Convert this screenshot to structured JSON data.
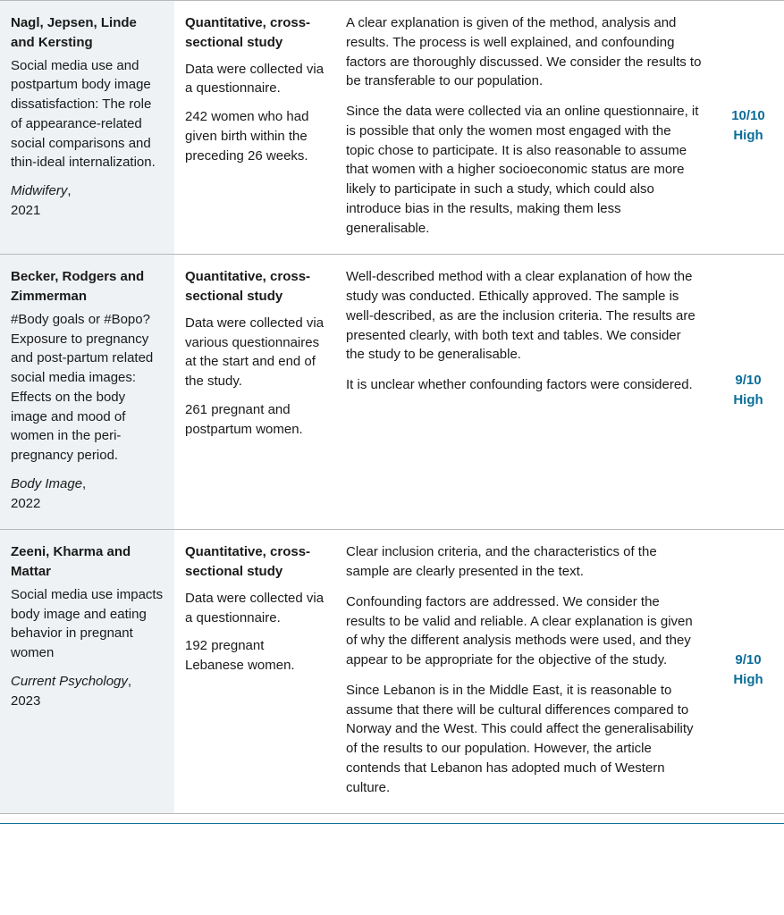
{
  "colors": {
    "score": "#0b6e99",
    "cell_bg": "#eef2f5",
    "border": "#b8b8b8",
    "rule": "#0b6e99"
  },
  "rows": [
    {
      "authors": "Nagl, Jepsen, Linde and Kersting",
      "title": "Social media use and postpartum body image dissatisfaction: The role of appearance-related social comparisons and thin-ideal internalization.",
      "journal": "Midwifery",
      "year": "2021",
      "method_type": "Quantitative, cross-sectional study",
      "method_p1": "Data were collected via a questionnaire.",
      "method_p2": "242 women who had given birth within the preceding 26 weeks.",
      "summary_p1": "A clear explanation is given of the method, analysis and results. The process is well explained, and confounding factors are thoroughly discussed. We consider the results to be transferable to our population.",
      "summary_p2": "Since the data were collected via an online questionnaire, it is possible that only the women most engaged with the topic chose to participate. It is also reasonable to assume that women with a higher socioeconomic status are more likely to participate in such a study, which could also introduce bias in the results, making them less generalisable.",
      "score": "10/10",
      "score_label": "High"
    },
    {
      "authors": "Becker, Rodgers and Zimmerman",
      "title": "#Body goals or #Bopo? Exposure to pregnancy and post-partum related social media images: Effects on the body image and mood of women in the peri-pregnancy period.",
      "journal": "Body Image",
      "year": "2022",
      "method_type": "Quantitative, cross-sectional study",
      "method_p1": "Data were collected via various questionnaires at the start and end of the study.",
      "method_p2": "261 pregnant and postpartum women.",
      "summary_p1": "Well-described method with a clear explanation of how the study was conducted. Ethically approved. The sample is well-described, as are the inclusion criteria. The results are presented clearly, with both text and tables. We consider the study to be generalisable.",
      "summary_p2": "It is unclear whether confounding factors were considered.",
      "score": "9/10",
      "score_label": "High"
    },
    {
      "authors": "Zeeni, Kharma and Mattar",
      "title": "Social media use impacts body image and eating behavior in pregnant women",
      "journal": "Current Psychology",
      "year": "2023",
      "method_type": "Quantitative, cross-sectional study",
      "method_p1": "Data were collected via a questionnaire.",
      "method_p2": "192 pregnant Lebanese women.",
      "summary_p1": "Clear inclusion criteria, and the characteristics of the sample are clearly presented in the text.",
      "summary_p2": "Confounding factors are addressed. We consider the results to be valid and reliable. A clear explanation is given of why the different analysis methods were used, and they appear to be appropriate for the objective of the study.",
      "summary_p3": "Since Lebanon is in the Middle East, it is reasonable to assume that there will be cultural differences compared to Norway and the West. This could affect the generalisability of the results to our population. However, the article contends that Lebanon has adopted much of Western culture.",
      "score": "9/10",
      "score_label": "High"
    }
  ]
}
